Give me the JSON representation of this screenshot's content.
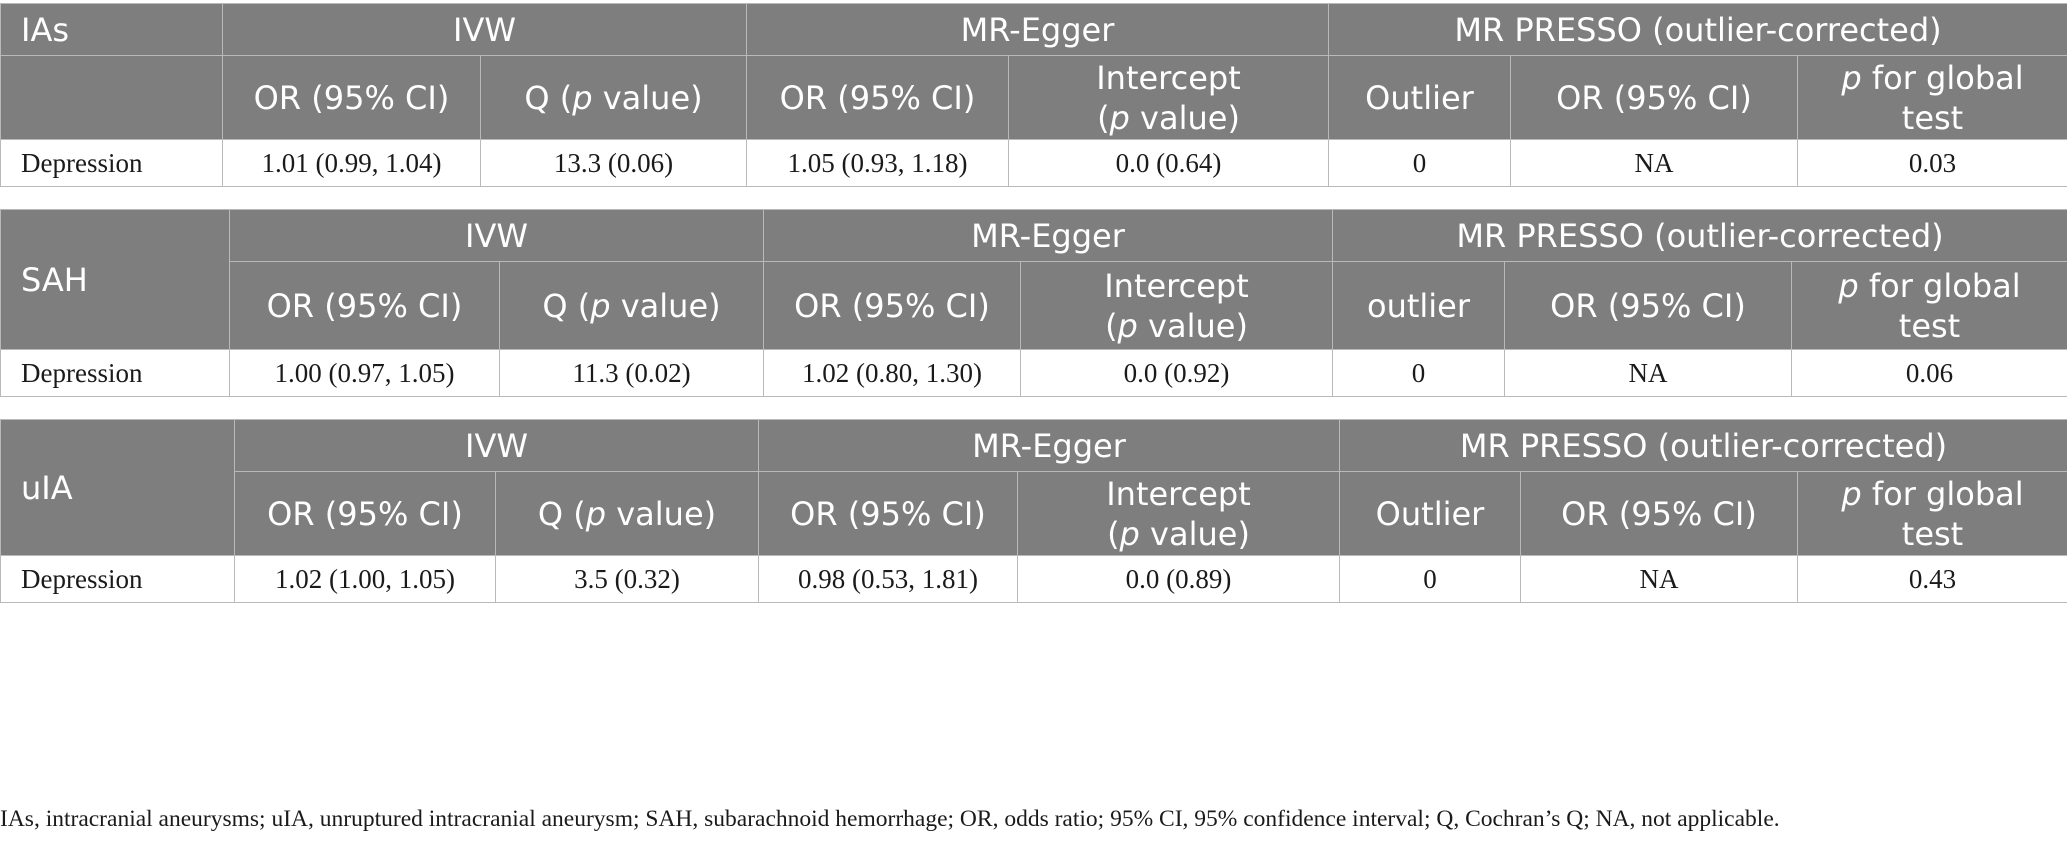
{
  "tables": [
    {
      "outcome": "IAs",
      "groups": [
        "IVW",
        "MR-Egger",
        "MR PRESSO (outlier-corrected)"
      ],
      "columns": {
        "or": "OR (95% CI)",
        "q_pre": "Q (",
        "p": "p",
        "q_post": " value)",
        "intercept_l1": "Intercept",
        "intercept_l2_pre": "(",
        "intercept_l2_post": " value)",
        "outlier": "Outlier",
        "global_l1_post": " for global",
        "global_l2": "test"
      },
      "row": {
        "exposure": "Depression",
        "ivw_or": "1.01 (0.99, 1.04)",
        "ivw_q": "13.3 (0.06)",
        "egger_or": "1.05 (0.93, 1.18)",
        "egger_intercept": "0.0 (0.64)",
        "presso_outlier": "0",
        "presso_or": "NA",
        "presso_global_p": "0.03"
      }
    },
    {
      "outcome": "SAH",
      "groups": [
        "IVW",
        "MR-Egger",
        "MR PRESSO (outlier-corrected)"
      ],
      "columns": {
        "or": "OR (95% CI)",
        "q_pre": "Q (",
        "p": "p",
        "q_post": " value)",
        "intercept_l1": "Intercept",
        "intercept_l2_pre": "(",
        "intercept_l2_post": " value)",
        "outlier": "outlier",
        "global_l1_post": " for global",
        "global_l2": "test"
      },
      "row": {
        "exposure": "Depression",
        "ivw_or": "1.00 (0.97, 1.05)",
        "ivw_q": "11.3 (0.02)",
        "egger_or": "1.02 (0.80, 1.30)",
        "egger_intercept": "0.0 (0.92)",
        "presso_outlier": "0",
        "presso_or": "NA",
        "presso_global_p": "0.06"
      }
    },
    {
      "outcome": "uIA",
      "groups": [
        "IVW",
        "MR-Egger",
        "MR PRESSO (outlier-corrected)"
      ],
      "columns": {
        "or": "OR (95% CI)",
        "q_pre": "Q (",
        "p": "p",
        "q_post": " value)",
        "intercept_l1": "Intercept",
        "intercept_l2_pre": "(",
        "intercept_l2_post": " value)",
        "outlier": "Outlier",
        "global_l1_post": " for global",
        "global_l2": "test"
      },
      "row": {
        "exposure": "Depression",
        "ivw_or": "1.02 (1.00, 1.05)",
        "ivw_q": "3.5 (0.32)",
        "egger_or": "0.98 (0.53, 1.81)",
        "egger_intercept": "0.0 (0.89)",
        "presso_outlier": "0",
        "presso_or": "NA",
        "presso_global_p": "0.43"
      }
    }
  ],
  "footnote": "IAs, intracranial aneurysms; uIA, unruptured intracranial aneurysm; SAH, subarachnoid hemorrhage; OR, odds ratio; 95% CI, 95% confidence interval; Q, Cochran’s Q; NA, not applicable."
}
